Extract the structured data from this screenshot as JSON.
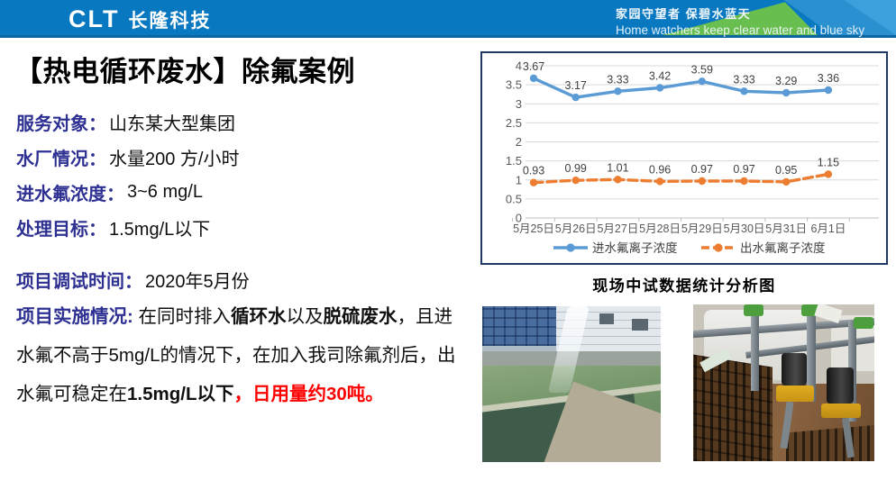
{
  "header": {
    "logo": "CLT",
    "brand": "长隆科技",
    "slogan_cn": "家园守望者 保碧水蓝天",
    "slogan_en": "Home watchers keep clear water and blue sky",
    "colors": {
      "bar_blue": "#0878C1",
      "accent_green": "#68BE4E",
      "accent_light_blue": "#3BA0DC"
    }
  },
  "title": "【热电循环废水】除氟案例",
  "info": {
    "rows": [
      {
        "label": "服务对象：",
        "value": "山东某大型集团"
      },
      {
        "label": "水厂情况：",
        "value": "水量200 方/小时"
      },
      {
        "label": "进水氟浓度：",
        "value": "3~6 mg/L"
      },
      {
        "label": "处理目标：",
        "value": "1.5mg/L以下"
      },
      {
        "label": "项目调试时间：",
        "value": "2020年5月份"
      }
    ],
    "implementation": {
      "label": "项目实施情况:",
      "label_color": "#2E3192",
      "highlight_color": "#FF0000",
      "segments": [
        {
          "text": " 在同时排入",
          "style": "normal"
        },
        {
          "text": "循环水",
          "style": "bold"
        },
        {
          "text": "以及",
          "style": "normal"
        },
        {
          "text": "脱硫废水",
          "style": "bold"
        },
        {
          "text": "，且进水氟不高于5mg/L的情况下，在加入我司除氟剂后，出水氟可稳定在",
          "style": "normal"
        },
        {
          "text": "1.5mg/L以下",
          "style": "bold"
        },
        {
          "text": "，日用量约30吨。",
          "style": "red"
        }
      ]
    }
  },
  "chart_caption": "现场中试数据统计分析图",
  "chart_data": {
    "type": "line",
    "title": "",
    "categories": [
      "5月25日",
      "5月26日",
      "5月27日",
      "5月28日",
      "5月29日",
      "5月30日",
      "5月31日",
      "6月1日"
    ],
    "series": [
      {
        "name": "进水氟离子浓度",
        "color": "#5B9BD5",
        "line_style": "solid",
        "values": [
          3.67,
          3.17,
          3.33,
          3.42,
          3.59,
          3.33,
          3.29,
          3.36
        ]
      },
      {
        "name": "出水氟离子浓度",
        "color": "#ED7D31",
        "line_style": "dashed",
        "values": [
          0.93,
          0.99,
          1.01,
          0.96,
          0.97,
          0.97,
          0.95,
          1.15
        ]
      }
    ],
    "xlabel": "",
    "ylabel": "",
    "ylim": [
      0,
      4
    ],
    "ytick_step": 0.5,
    "grid": true,
    "grid_color": "#D9D9D9",
    "axis_color": "#BFBFBF",
    "legend_position": "bottom",
    "border_color": "#1F3864"
  },
  "photos": [
    {
      "name": "treatment-pool-photo"
    },
    {
      "name": "dosing-pumps-photo"
    }
  ]
}
